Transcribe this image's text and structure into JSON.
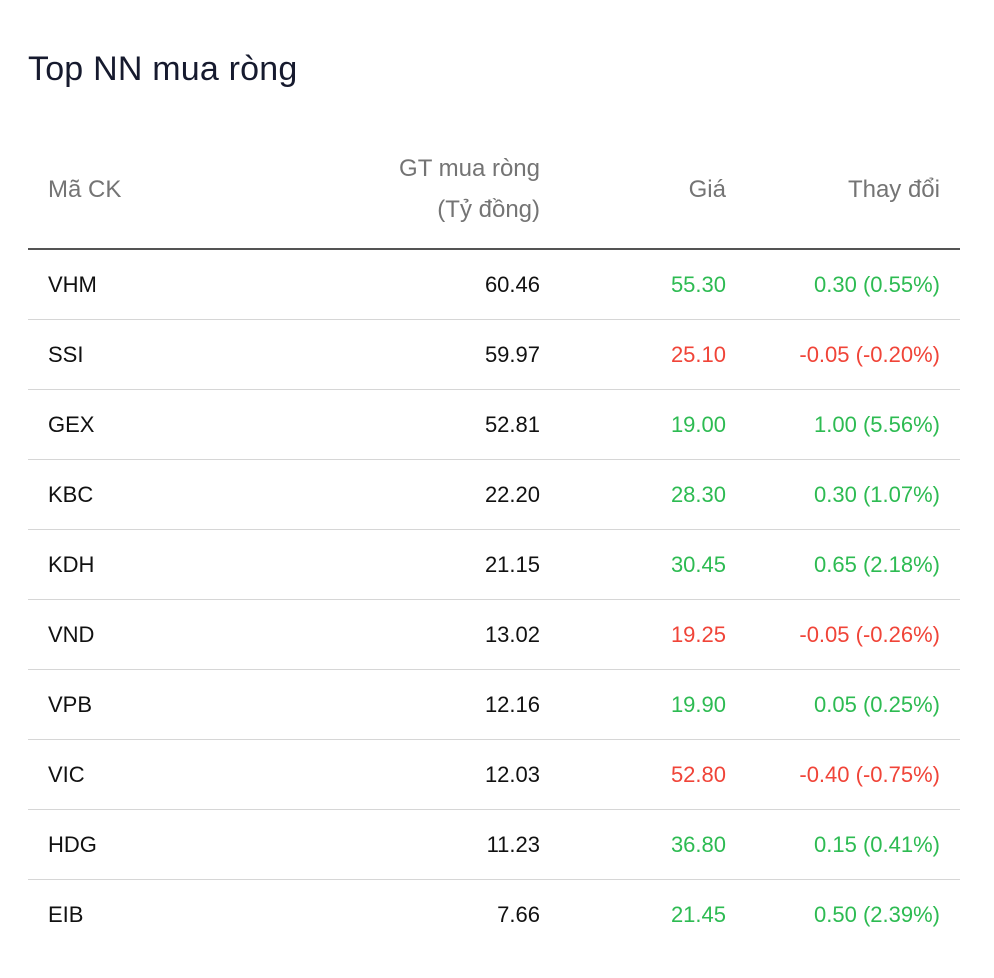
{
  "title": "Top NN mua ròng",
  "colors": {
    "up": "#2dbb52",
    "down": "#f04438",
    "header_text": "#747474",
    "title_text": "#161a2e"
  },
  "columns": {
    "code": "Mã CK",
    "value_line1": "GT mua ròng",
    "value_line2": "(Tỷ đồng)",
    "price": "Giá",
    "change": "Thay đổi"
  },
  "rows": [
    {
      "code": "VHM",
      "value": "60.46",
      "price": "55.30",
      "change": "0.30 (0.55%)",
      "direction": "up"
    },
    {
      "code": "SSI",
      "value": "59.97",
      "price": "25.10",
      "change": "-0.05 (-0.20%)",
      "direction": "down"
    },
    {
      "code": "GEX",
      "value": "52.81",
      "price": "19.00",
      "change": "1.00 (5.56%)",
      "direction": "up"
    },
    {
      "code": "KBC",
      "value": "22.20",
      "price": "28.30",
      "change": "0.30 (1.07%)",
      "direction": "up"
    },
    {
      "code": "KDH",
      "value": "21.15",
      "price": "30.45",
      "change": "0.65 (2.18%)",
      "direction": "up"
    },
    {
      "code": "VND",
      "value": "13.02",
      "price": "19.25",
      "change": "-0.05 (-0.26%)",
      "direction": "down"
    },
    {
      "code": "VPB",
      "value": "12.16",
      "price": "19.90",
      "change": "0.05 (0.25%)",
      "direction": "up"
    },
    {
      "code": "VIC",
      "value": "12.03",
      "price": "52.80",
      "change": "-0.40 (-0.75%)",
      "direction": "down"
    },
    {
      "code": "HDG",
      "value": "11.23",
      "price": "36.80",
      "change": "0.15 (0.41%)",
      "direction": "up"
    },
    {
      "code": "EIB",
      "value": "7.66",
      "price": "21.45",
      "change": "0.50 (2.39%)",
      "direction": "up"
    }
  ]
}
